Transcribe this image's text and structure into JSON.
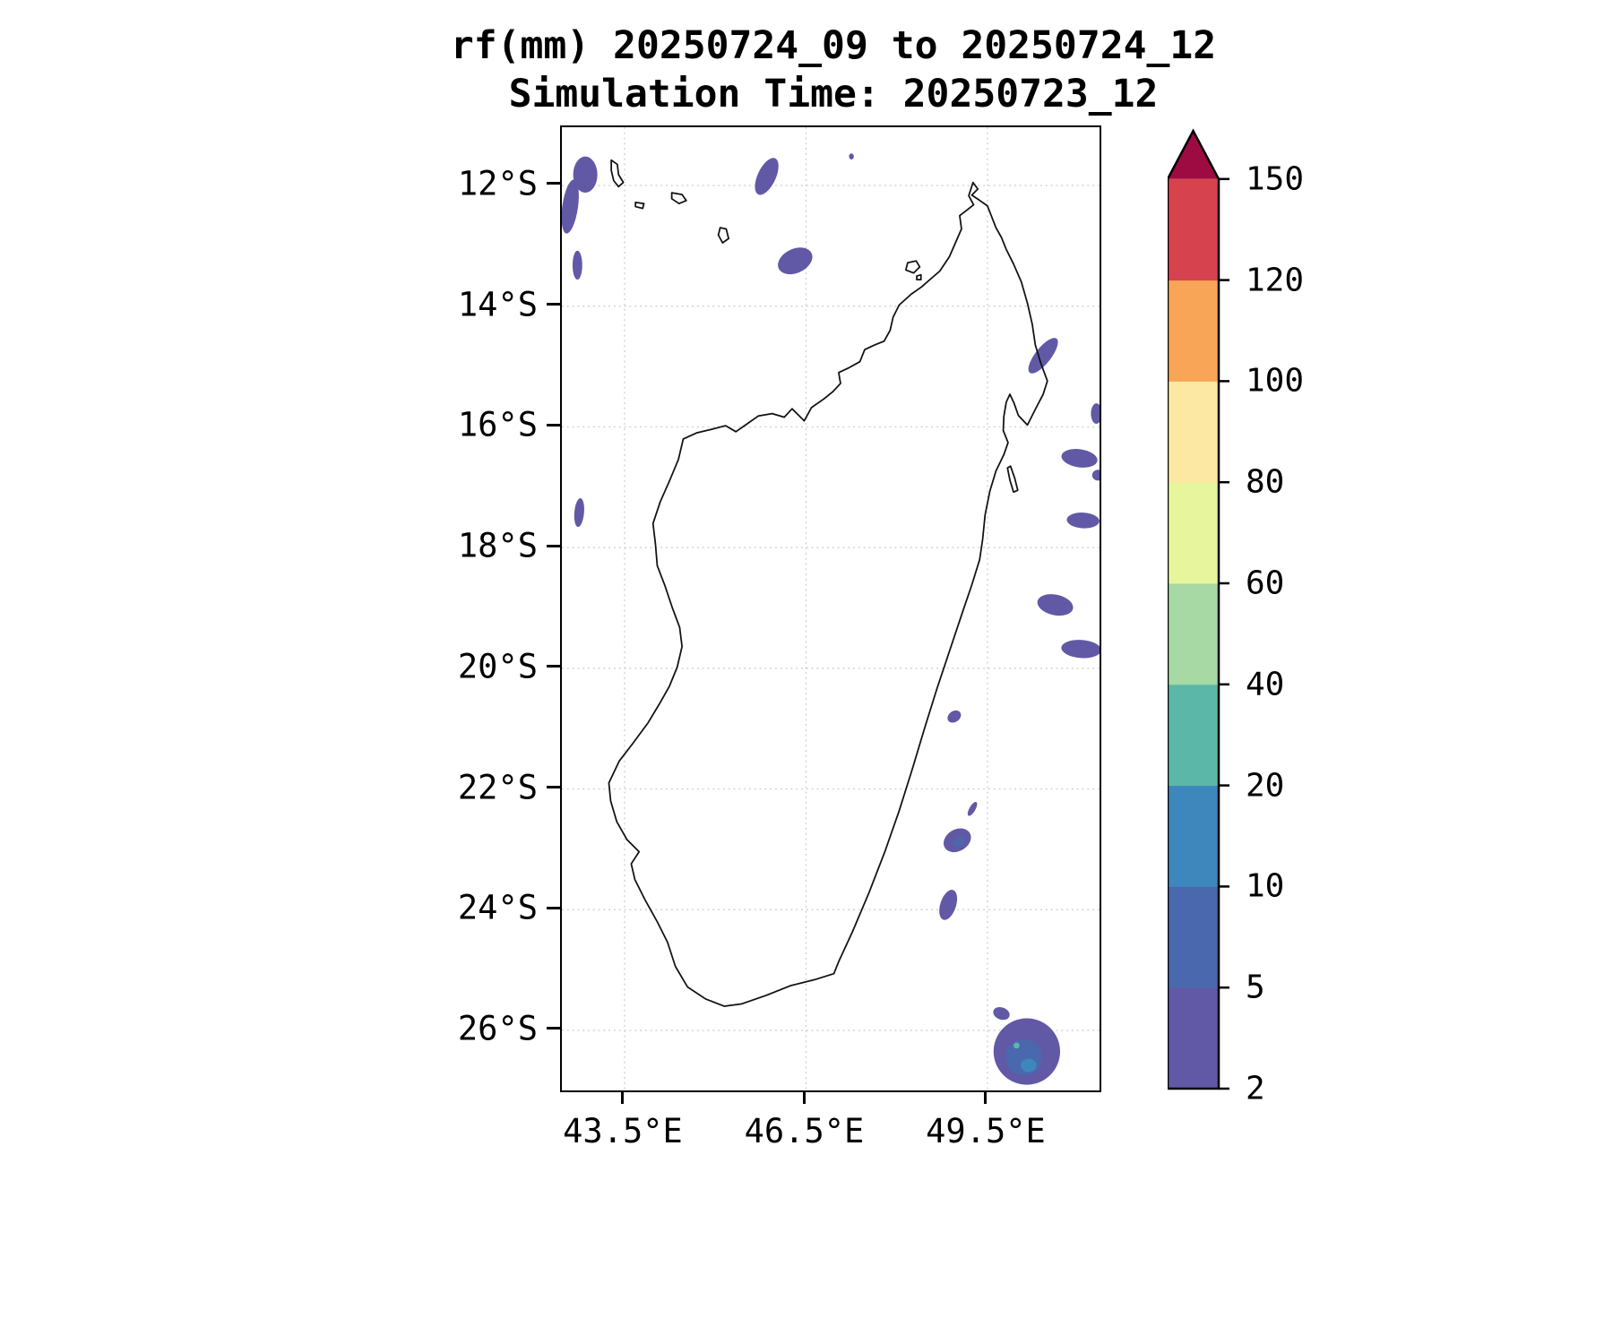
{
  "header": {
    "title_line1": "rf(mm) 20250724_09 to 20250724_12",
    "title_line2": "Simulation Time: 20250723_12"
  },
  "axes": {
    "lat_ticks": [
      {
        "value": 12,
        "label": "12°S"
      },
      {
        "value": 14,
        "label": "14°S"
      },
      {
        "value": 16,
        "label": "16°S"
      },
      {
        "value": 18,
        "label": "18°S"
      },
      {
        "value": 20,
        "label": "20°S"
      },
      {
        "value": 22,
        "label": "22°S"
      },
      {
        "value": 24,
        "label": "24°S"
      },
      {
        "value": 26,
        "label": "26°S"
      }
    ],
    "lon_ticks": [
      {
        "value": 43.5,
        "label": "43.5°E"
      },
      {
        "value": 46.5,
        "label": "46.5°E"
      },
      {
        "value": 49.5,
        "label": "49.5°E"
      }
    ]
  },
  "colorbar": {
    "levels": [
      2,
      5,
      10,
      20,
      40,
      60,
      80,
      100,
      120,
      150
    ],
    "labels": [
      "2",
      "5",
      "10",
      "20",
      "40",
      "60",
      "80",
      "100",
      "120",
      "150"
    ],
    "band_colors": [
      "#6159a6",
      "#4a68ae",
      "#3e87bc",
      "#5bb8a8",
      "#a6d9a4",
      "#e7f59c",
      "#fce8a2",
      "#f8a558",
      "#d6434e"
    ],
    "extend_color": "#9e0b42",
    "extend": "max",
    "outline_color": "#000000"
  },
  "chart_data": {
    "type": "heatmap",
    "title": "rf(mm) 20250724_09 to 20250724_12",
    "subtitle": "Simulation Time: 20250723_12",
    "variable": "accumulated rainfall",
    "units": "mm",
    "region": "Madagascar and surrounding ocean",
    "lon_range_deg_e": [
      42.463,
      51.352
    ],
    "lat_range_deg_s": [
      11.035,
      26.995
    ],
    "contour_levels_mm": [
      2,
      5,
      10,
      20,
      40,
      60,
      80,
      100,
      120,
      150
    ],
    "gridlines": {
      "lat": [
        12,
        14,
        16,
        18,
        20,
        22,
        24,
        26
      ],
      "lon": [
        43.5,
        46.5,
        49.5
      ]
    },
    "rain_patches": [
      {
        "lon": 42.85,
        "lat_s": 11.82,
        "rx_deg": 0.2,
        "ry_deg": 0.3,
        "rot_deg": 0,
        "band": 0
      },
      {
        "lon": 42.6,
        "lat_s": 12.35,
        "rx_deg": 0.13,
        "ry_deg": 0.45,
        "rot_deg": 8,
        "band": 0
      },
      {
        "lon": 42.72,
        "lat_s": 13.32,
        "rx_deg": 0.08,
        "ry_deg": 0.24,
        "rot_deg": 0,
        "band": 0
      },
      {
        "lon": 45.85,
        "lat_s": 11.85,
        "rx_deg": 0.15,
        "ry_deg": 0.33,
        "rot_deg": 25,
        "band": 0
      },
      {
        "lon": 47.25,
        "lat_s": 11.52,
        "rx_deg": 0.04,
        "ry_deg": 0.05,
        "rot_deg": 0,
        "band": 0
      },
      {
        "lon": 46.32,
        "lat_s": 13.25,
        "rx_deg": 0.3,
        "ry_deg": 0.2,
        "rot_deg": -25,
        "band": 0
      },
      {
        "lon": 50.42,
        "lat_s": 14.82,
        "rx_deg": 0.13,
        "ry_deg": 0.36,
        "rot_deg": 38,
        "band": 0
      },
      {
        "lon": 51.3,
        "lat_s": 15.78,
        "rx_deg": 0.09,
        "ry_deg": 0.17,
        "rot_deg": 0,
        "band": 0
      },
      {
        "lon": 51.02,
        "lat_s": 16.52,
        "rx_deg": 0.3,
        "ry_deg": 0.15,
        "rot_deg": 8,
        "band": 0
      },
      {
        "lon": 51.33,
        "lat_s": 16.8,
        "rx_deg": 0.1,
        "ry_deg": 0.09,
        "rot_deg": 0,
        "band": 0
      },
      {
        "lon": 51.08,
        "lat_s": 17.55,
        "rx_deg": 0.27,
        "ry_deg": 0.13,
        "rot_deg": 3,
        "band": 0
      },
      {
        "lon": 42.75,
        "lat_s": 17.42,
        "rx_deg": 0.08,
        "ry_deg": 0.24,
        "rot_deg": 5,
        "band": 0
      },
      {
        "lon": 50.62,
        "lat_s": 18.95,
        "rx_deg": 0.3,
        "ry_deg": 0.17,
        "rot_deg": 12,
        "band": 0
      },
      {
        "lon": 51.05,
        "lat_s": 19.68,
        "rx_deg": 0.33,
        "ry_deg": 0.15,
        "rot_deg": 4,
        "band": 0
      },
      {
        "lon": 48.95,
        "lat_s": 20.8,
        "rx_deg": 0.12,
        "ry_deg": 0.09,
        "rot_deg": -35,
        "band": 0
      },
      {
        "lon": 49.25,
        "lat_s": 22.33,
        "rx_deg": 0.05,
        "ry_deg": 0.13,
        "rot_deg": 30,
        "band": 0
      },
      {
        "lon": 49.0,
        "lat_s": 22.85,
        "rx_deg": 0.24,
        "ry_deg": 0.18,
        "rot_deg": -30,
        "band": 0
      },
      {
        "lon": 49.03,
        "lat_s": 22.88,
        "rx_deg": 0.1,
        "ry_deg": 0.07,
        "rot_deg": -30,
        "band": 1
      },
      {
        "lon": 48.85,
        "lat_s": 23.92,
        "rx_deg": 0.13,
        "ry_deg": 0.26,
        "rot_deg": 18,
        "band": 0
      },
      {
        "lon": 49.73,
        "lat_s": 25.72,
        "rx_deg": 0.14,
        "ry_deg": 0.1,
        "rot_deg": 20,
        "band": 0
      },
      {
        "lon": 50.15,
        "lat_s": 26.35,
        "rx_deg": 0.55,
        "ry_deg": 0.55,
        "rot_deg": -12,
        "band": 0
      },
      {
        "lon": 50.1,
        "lat_s": 26.45,
        "rx_deg": 0.3,
        "ry_deg": 0.3,
        "rot_deg": 0,
        "band": 1
      },
      {
        "lon": 50.18,
        "lat_s": 26.58,
        "rx_deg": 0.13,
        "ry_deg": 0.11,
        "rot_deg": 0,
        "band": 2
      },
      {
        "lon": 49.98,
        "lat_s": 26.25,
        "rx_deg": 0.05,
        "ry_deg": 0.05,
        "rot_deg": 0,
        "band": 3
      }
    ],
    "coastline": {
      "madagascar": [
        [
          49.26,
          11.95
        ],
        [
          49.34,
          12.06
        ],
        [
          49.24,
          12.16
        ],
        [
          49.36,
          12.24
        ],
        [
          49.5,
          12.34
        ],
        [
          49.57,
          12.52
        ],
        [
          49.64,
          12.7
        ],
        [
          49.73,
          12.86
        ],
        [
          49.81,
          13.06
        ],
        [
          49.93,
          13.3
        ],
        [
          50.06,
          13.6
        ],
        [
          50.16,
          13.95
        ],
        [
          50.24,
          14.3
        ],
        [
          50.29,
          14.64
        ],
        [
          50.38,
          14.94
        ],
        [
          50.49,
          15.24
        ],
        [
          50.42,
          15.46
        ],
        [
          50.29,
          15.71
        ],
        [
          50.16,
          15.97
        ],
        [
          50.01,
          15.81
        ],
        [
          49.94,
          15.61
        ],
        [
          49.87,
          15.46
        ],
        [
          49.81,
          15.59
        ],
        [
          49.77,
          15.83
        ],
        [
          49.76,
          16.06
        ],
        [
          49.84,
          16.26
        ],
        [
          49.77,
          16.46
        ],
        [
          49.64,
          16.73
        ],
        [
          49.54,
          17.06
        ],
        [
          49.46,
          17.46
        ],
        [
          49.42,
          17.86
        ],
        [
          49.37,
          18.2
        ],
        [
          49.24,
          18.62
        ],
        [
          49.07,
          19.12
        ],
        [
          48.87,
          19.72
        ],
        [
          48.67,
          20.32
        ],
        [
          48.47,
          20.96
        ],
        [
          48.26,
          21.66
        ],
        [
          48.04,
          22.36
        ],
        [
          47.81,
          23.02
        ],
        [
          47.54,
          23.72
        ],
        [
          47.27,
          24.36
        ],
        [
          47.04,
          24.86
        ],
        [
          46.96,
          25.06
        ],
        [
          46.64,
          25.16
        ],
        [
          46.24,
          25.26
        ],
        [
          45.84,
          25.42
        ],
        [
          45.44,
          25.56
        ],
        [
          45.15,
          25.6
        ],
        [
          44.84,
          25.48
        ],
        [
          44.54,
          25.28
        ],
        [
          44.34,
          24.94
        ],
        [
          44.21,
          24.54
        ],
        [
          44.04,
          24.2
        ],
        [
          43.84,
          23.84
        ],
        [
          43.67,
          23.5
        ],
        [
          43.61,
          23.24
        ],
        [
          43.74,
          23.04
        ],
        [
          43.54,
          22.84
        ],
        [
          43.37,
          22.54
        ],
        [
          43.27,
          22.2
        ],
        [
          43.24,
          21.9
        ],
        [
          43.41,
          21.54
        ],
        [
          43.64,
          21.24
        ],
        [
          43.89,
          20.9
        ],
        [
          44.07,
          20.6
        ],
        [
          44.24,
          20.3
        ],
        [
          44.37,
          19.98
        ],
        [
          44.45,
          19.64
        ],
        [
          44.41,
          19.32
        ],
        [
          44.29,
          19.0
        ],
        [
          44.17,
          18.64
        ],
        [
          44.04,
          18.3
        ],
        [
          44.01,
          17.94
        ],
        [
          43.97,
          17.6
        ],
        [
          44.09,
          17.24
        ],
        [
          44.24,
          16.9
        ],
        [
          44.39,
          16.54
        ],
        [
          44.47,
          16.2
        ],
        [
          44.69,
          16.1
        ],
        [
          44.94,
          16.04
        ],
        [
          45.17,
          15.98
        ],
        [
          45.34,
          16.08
        ],
        [
          45.54,
          15.94
        ],
        [
          45.71,
          15.82
        ],
        [
          45.94,
          15.78
        ],
        [
          46.14,
          15.84
        ],
        [
          46.27,
          15.7
        ],
        [
          46.47,
          15.9
        ],
        [
          46.59,
          15.68
        ],
        [
          46.79,
          15.54
        ],
        [
          46.94,
          15.42
        ],
        [
          47.07,
          15.28
        ],
        [
          47.04,
          15.1
        ],
        [
          47.21,
          15.02
        ],
        [
          47.39,
          14.92
        ],
        [
          47.47,
          14.72
        ],
        [
          47.64,
          14.64
        ],
        [
          47.79,
          14.58
        ],
        [
          47.89,
          14.4
        ],
        [
          47.94,
          14.18
        ],
        [
          48.04,
          13.98
        ],
        [
          48.24,
          13.8
        ],
        [
          48.41,
          13.68
        ],
        [
          48.57,
          13.54
        ],
        [
          48.71,
          13.42
        ],
        [
          48.87,
          13.18
        ],
        [
          48.97,
          12.95
        ],
        [
          49.07,
          12.72
        ],
        [
          49.04,
          12.5
        ],
        [
          49.17,
          12.4
        ],
        [
          49.27,
          12.32
        ],
        [
          49.19,
          12.17
        ],
        [
          49.26,
          11.95
        ]
      ],
      "islands": [
        [
          [
            43.28,
            11.58
          ],
          [
            43.38,
            11.65
          ],
          [
            43.4,
            11.82
          ],
          [
            43.48,
            11.95
          ],
          [
            43.4,
            12.02
          ],
          [
            43.32,
            11.92
          ],
          [
            43.28,
            11.75
          ]
        ],
        [
          [
            43.68,
            12.28
          ],
          [
            43.82,
            12.3
          ],
          [
            43.8,
            12.38
          ],
          [
            43.68,
            12.35
          ]
        ],
        [
          [
            44.28,
            12.12
          ],
          [
            44.45,
            12.15
          ],
          [
            44.52,
            12.25
          ],
          [
            44.4,
            12.3
          ],
          [
            44.28,
            12.22
          ]
        ],
        [
          [
            45.08,
            12.7
          ],
          [
            45.18,
            12.72
          ],
          [
            45.22,
            12.88
          ],
          [
            45.12,
            12.95
          ],
          [
            45.05,
            12.82
          ]
        ],
        [
          [
            48.18,
            13.28
          ],
          [
            48.32,
            13.25
          ],
          [
            48.38,
            13.35
          ],
          [
            48.28,
            13.45
          ],
          [
            48.15,
            13.4
          ]
        ],
        [
          [
            48.33,
            13.5
          ],
          [
            48.4,
            13.48
          ],
          [
            48.4,
            13.56
          ],
          [
            48.33,
            13.56
          ]
        ],
        [
          [
            49.88,
            16.65
          ],
          [
            49.95,
            16.85
          ],
          [
            50.0,
            17.05
          ],
          [
            49.93,
            17.08
          ],
          [
            49.87,
            16.88
          ],
          [
            49.83,
            16.68
          ]
        ]
      ]
    }
  }
}
